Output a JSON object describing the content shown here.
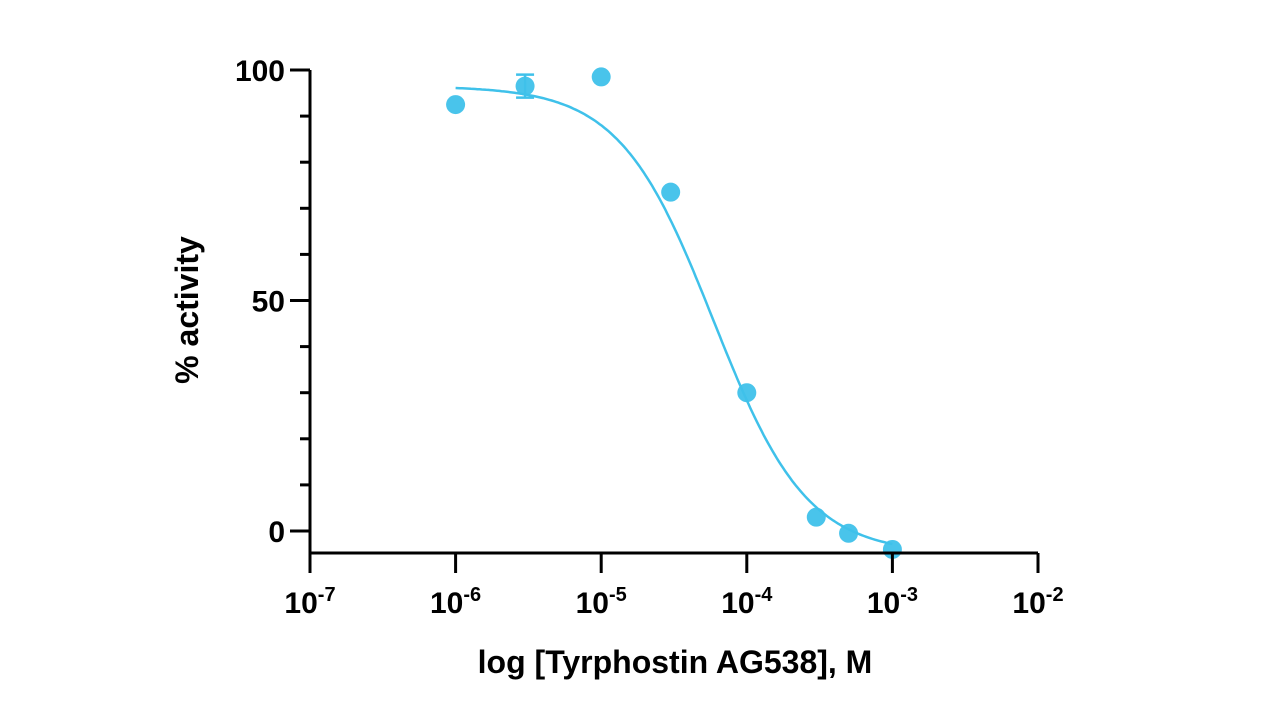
{
  "chart_data": {
    "type": "scatter",
    "xlabel": "log [Tyrphostin AG538], M",
    "ylabel": "% activity",
    "x_scale": "log",
    "xlim": [
      1e-07,
      0.01
    ],
    "ylim": [
      -5,
      100
    ],
    "x_ticks": [
      {
        "value": 1e-07,
        "base": "10",
        "exp": "-7"
      },
      {
        "value": 1e-06,
        "base": "10",
        "exp": "-6"
      },
      {
        "value": 1e-05,
        "base": "10",
        "exp": "-5"
      },
      {
        "value": 0.0001,
        "base": "10",
        "exp": "-4"
      },
      {
        "value": 0.001,
        "base": "10",
        "exp": "-3"
      },
      {
        "value": 0.01,
        "base": "10",
        "exp": "-2"
      }
    ],
    "y_ticks": [
      {
        "value": 0,
        "label": "0"
      },
      {
        "value": 50,
        "label": "50"
      },
      {
        "value": 100,
        "label": "100"
      }
    ],
    "y_minor_step": 10,
    "x_minor": false,
    "grid": false,
    "color": "#3fc1ea",
    "points": [
      {
        "x": 1e-06,
        "y": 92.5
      },
      {
        "x": 3e-06,
        "y": 96.5,
        "err": 2.5
      },
      {
        "x": 1e-05,
        "y": 98.5
      },
      {
        "x": 3e-05,
        "y": 73.5
      },
      {
        "x": 0.0001,
        "y": 30
      },
      {
        "x": 0.0003,
        "y": 3
      },
      {
        "x": 0.0005,
        "y": -0.5
      },
      {
        "x": 0.001,
        "y": -4
      }
    ],
    "fit": {
      "model": "four-parameter logistic",
      "top": 96.5,
      "bottom": -5,
      "log_ic50": -4.23,
      "hill_slope": -1.35,
      "x_range": [
        1e-06,
        0.001
      ]
    }
  }
}
